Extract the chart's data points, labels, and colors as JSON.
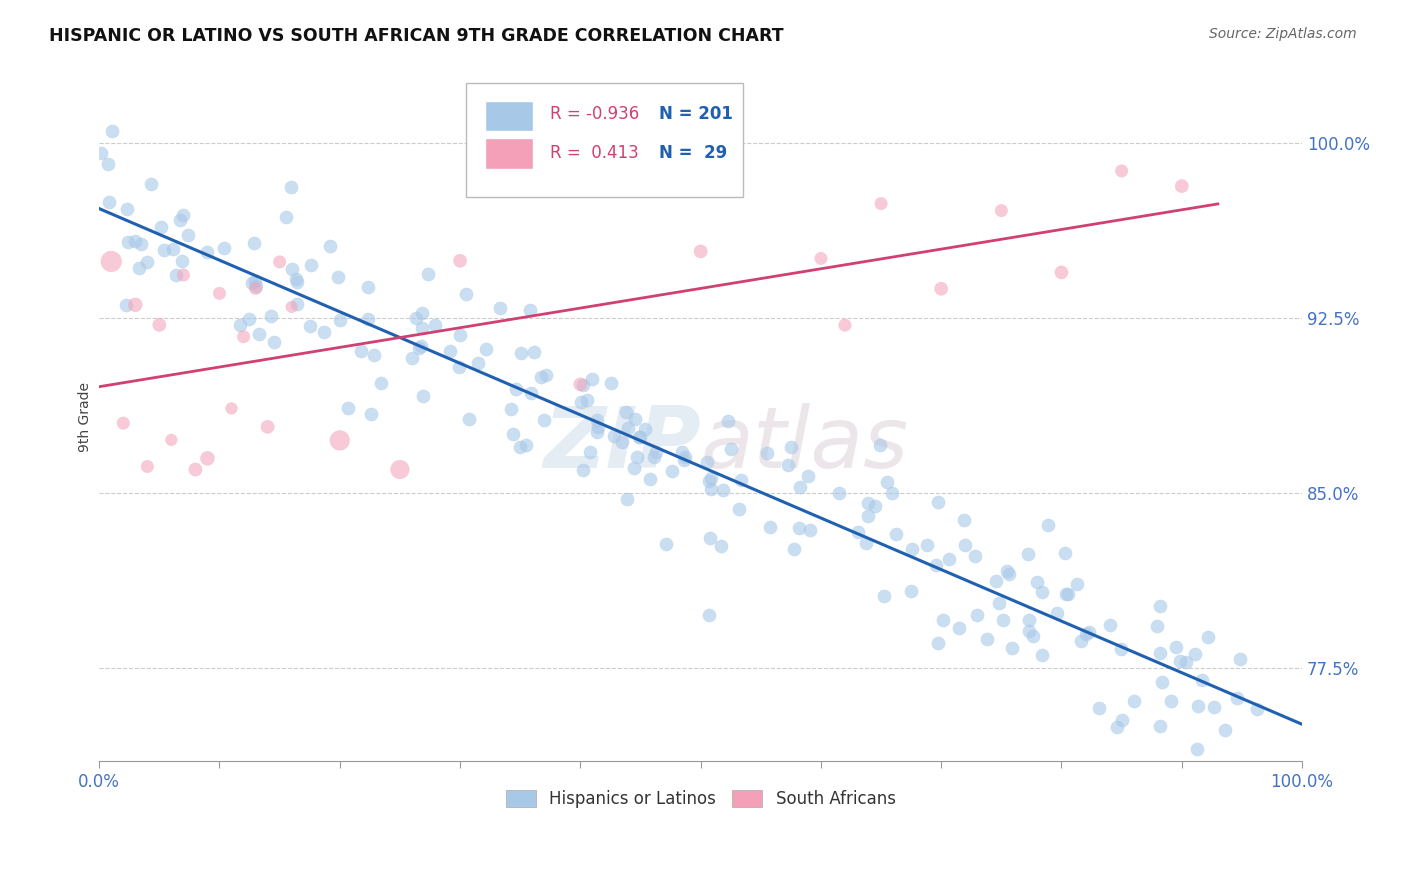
{
  "title": "HISPANIC OR LATINO VS SOUTH AFRICAN 9TH GRADE CORRELATION CHART",
  "source_text": "Source: ZipAtlas.com",
  "ylabel": "9th Grade",
  "xlim": [
    0.0,
    1.0
  ],
  "ylim": [
    0.735,
    1.03
  ],
  "yticks": [
    0.775,
    0.85,
    0.925,
    1.0
  ],
  "ytick_labels": [
    "77.5%",
    "85.0%",
    "92.5%",
    "100.0%"
  ],
  "xtick_labels": [
    "0.0%",
    "100.0%"
  ],
  "blue_R": -0.936,
  "blue_N": 201,
  "pink_R": 0.413,
  "pink_N": 29,
  "blue_color": "#a8c8e8",
  "pink_color": "#f4a0b8",
  "blue_line_color": "#2060b0",
  "pink_line_color": "#d04070",
  "legend_blue_label": "Hispanics or Latinos",
  "legend_pink_label": "South Africans",
  "watermark": "ZIPAtlas",
  "background_color": "#ffffff",
  "grid_color": "#cccccc"
}
